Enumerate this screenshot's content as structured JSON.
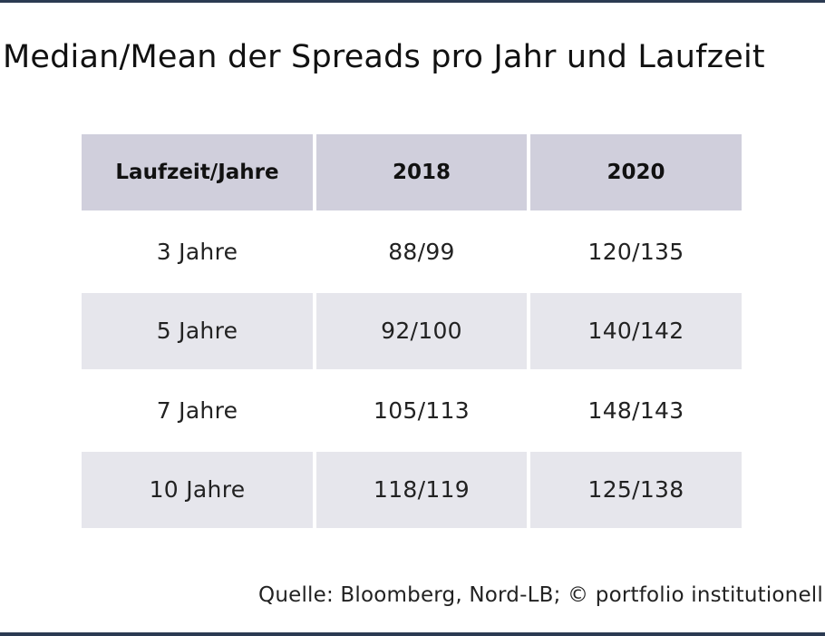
{
  "title": "Median/Mean der Spreads pro Jahr und Laufzeit",
  "table": {
    "headers": [
      "Laufzeit/Jahre",
      "2018",
      "2020"
    ],
    "rows": [
      [
        "3 Jahre",
        "88/99",
        "120/135"
      ],
      [
        "5 Jahre",
        "92/100",
        "140/142"
      ],
      [
        "7 Jahre",
        "105/113",
        "148/143"
      ],
      [
        "10 Jahre",
        "118/119",
        "125/138"
      ]
    ]
  },
  "source": "Quelle: Bloomberg, Nord-LB; © portfolio institutionell",
  "colors": {
    "rule": "#2b3a52",
    "header_fill": "#d0cfdc",
    "shaded_row_fill": "#e6e6ec"
  }
}
